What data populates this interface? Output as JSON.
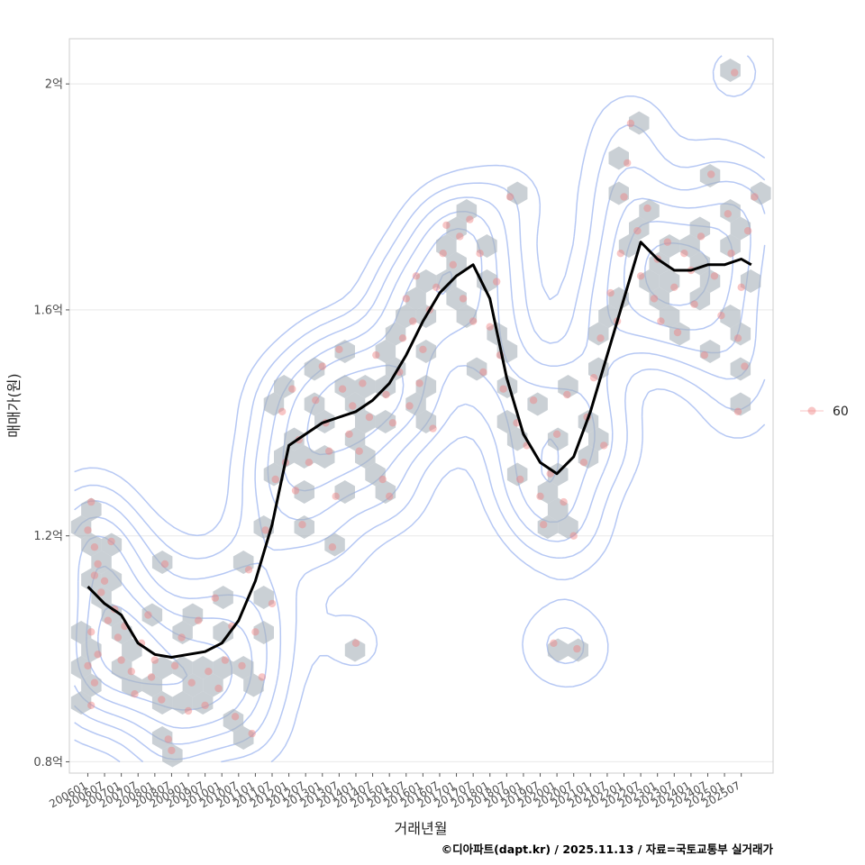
{
  "chart_data": {
    "type": "scatter",
    "title": "",
    "xlabel": "거래년월",
    "ylabel": "매매가(원)",
    "caption": "©디아파트(dapt.kr) / 2025.11.13 / 자료=국토교통부 실거래가",
    "legend": {
      "position": "right",
      "entries": [
        "60"
      ]
    },
    "x_range": [
      2005.45,
      2026.45
    ],
    "ylim": [
      0.78,
      2.08
    ],
    "y_unit": "억",
    "y_ticks": [
      {
        "value": 0.8,
        "label": "0.8억"
      },
      {
        "value": 1.2,
        "label": "1.2억"
      },
      {
        "value": 1.6,
        "label": "1.6억"
      },
      {
        "value": 2.0,
        "label": "2억"
      }
    ],
    "x_ticks": [
      "200601",
      "200607",
      "200701",
      "200707",
      "200801",
      "200807",
      "200901",
      "200907",
      "201001",
      "201007",
      "201101",
      "201107",
      "201201",
      "201207",
      "201301",
      "201307",
      "201401",
      "201407",
      "201501",
      "201507",
      "201601",
      "201607",
      "201701",
      "201707",
      "201801",
      "201807",
      "201901",
      "201907",
      "202001",
      "202007",
      "202101",
      "202107",
      "202201",
      "202207",
      "202301",
      "202307",
      "202401",
      "202407",
      "202501",
      "202507"
    ],
    "colors": {
      "points": "#f08080",
      "hexbin": "#aab3bb",
      "density": "#a9bef2",
      "trend": "#000000",
      "grid": "#ebebeb",
      "panel_border": "#cccccc"
    },
    "series": [
      {
        "name": "moving-average",
        "x": [
          2006.0,
          2006.5,
          2007.0,
          2007.5,
          2008.0,
          2008.5,
          2009.0,
          2009.5,
          2010.0,
          2010.5,
          2011.0,
          2011.5,
          2012.0,
          2012.5,
          2013.0,
          2013.5,
          2014.0,
          2014.5,
          2015.0,
          2015.5,
          2016.0,
          2016.5,
          2017.0,
          2017.5,
          2018.0,
          2018.5,
          2019.0,
          2019.5,
          2020.0,
          2020.5,
          2021.0,
          2021.5,
          2022.0,
          2022.5,
          2023.0,
          2023.5,
          2024.0,
          2024.5,
          2025.0,
          2025.5,
          2025.8
        ],
        "y": [
          1.11,
          1.08,
          1.06,
          1.01,
          0.99,
          0.985,
          0.99,
          0.995,
          1.01,
          1.05,
          1.12,
          1.22,
          1.36,
          1.38,
          1.4,
          1.41,
          1.42,
          1.44,
          1.47,
          1.52,
          1.58,
          1.63,
          1.66,
          1.68,
          1.62,
          1.48,
          1.38,
          1.33,
          1.31,
          1.34,
          1.42,
          1.52,
          1.62,
          1.72,
          1.69,
          1.67,
          1.67,
          1.68,
          1.68,
          1.69,
          1.68
        ]
      },
      {
        "name": "60",
        "points": [
          [
            2006.0,
            1.21
          ],
          [
            2006.1,
            1.26
          ],
          [
            2006.2,
            1.18
          ],
          [
            2006.2,
            1.13
          ],
          [
            2006.3,
            1.15
          ],
          [
            2006.4,
            1.1
          ],
          [
            2006.5,
            1.12
          ],
          [
            2006.6,
            1.05
          ],
          [
            2006.1,
            1.03
          ],
          [
            2006.3,
            0.99
          ],
          [
            2006.0,
            0.97
          ],
          [
            2006.2,
            0.94
          ],
          [
            2006.1,
            0.9
          ],
          [
            2006.7,
            1.19
          ],
          [
            2006.8,
            1.07
          ],
          [
            2006.9,
            1.02
          ],
          [
            2007.0,
            0.98
          ],
          [
            2007.1,
            1.04
          ],
          [
            2007.3,
            0.96
          ],
          [
            2007.4,
            0.92
          ],
          [
            2007.6,
            1.01
          ],
          [
            2007.8,
            1.06
          ],
          [
            2007.9,
            0.95
          ],
          [
            2008.0,
            0.98
          ],
          [
            2008.2,
            0.91
          ],
          [
            2008.3,
            1.15
          ],
          [
            2008.4,
            0.84
          ],
          [
            2008.5,
            0.82
          ],
          [
            2008.6,
            0.97
          ],
          [
            2008.8,
            1.02
          ],
          [
            2009.0,
            0.89
          ],
          [
            2009.1,
            0.94
          ],
          [
            2009.3,
            1.05
          ],
          [
            2009.5,
            0.9
          ],
          [
            2009.6,
            0.96
          ],
          [
            2009.8,
            1.09
          ],
          [
            2009.9,
            0.93
          ],
          [
            2010.1,
            0.98
          ],
          [
            2010.3,
            1.04
          ],
          [
            2010.4,
            0.88
          ],
          [
            2010.6,
            0.97
          ],
          [
            2010.8,
            1.14
          ],
          [
            2010.9,
            0.85
          ],
          [
            2011.0,
            1.03
          ],
          [
            2011.2,
            0.95
          ],
          [
            2011.3,
            1.21
          ],
          [
            2011.5,
            1.08
          ],
          [
            2011.6,
            1.3
          ],
          [
            2011.8,
            1.42
          ],
          [
            2011.9,
            1.33
          ],
          [
            2012.1,
            1.46
          ],
          [
            2012.2,
            1.28
          ],
          [
            2012.3,
            1.37
          ],
          [
            2012.4,
            1.22
          ],
          [
            2012.6,
            1.33
          ],
          [
            2012.8,
            1.44
          ],
          [
            2013.0,
            1.5
          ],
          [
            2013.1,
            1.4
          ],
          [
            2013.2,
            1.35
          ],
          [
            2013.3,
            1.18
          ],
          [
            2013.4,
            1.27
          ],
          [
            2013.5,
            1.53
          ],
          [
            2013.6,
            1.46
          ],
          [
            2013.8,
            1.38
          ],
          [
            2013.9,
            1.43
          ],
          [
            2014.0,
            1.01
          ],
          [
            2014.1,
            1.35
          ],
          [
            2014.2,
            1.47
          ],
          [
            2014.4,
            1.41
          ],
          [
            2014.6,
            1.52
          ],
          [
            2014.8,
            1.3
          ],
          [
            2014.9,
            1.45
          ],
          [
            2015.0,
            1.27
          ],
          [
            2015.1,
            1.4
          ],
          [
            2015.3,
            1.49
          ],
          [
            2015.4,
            1.55
          ],
          [
            2015.5,
            1.62
          ],
          [
            2015.6,
            1.43
          ],
          [
            2015.7,
            1.58
          ],
          [
            2015.8,
            1.66
          ],
          [
            2015.9,
            1.47
          ],
          [
            2016.0,
            1.53
          ],
          [
            2016.2,
            1.6
          ],
          [
            2016.3,
            1.39
          ],
          [
            2016.4,
            1.64
          ],
          [
            2016.6,
            1.7
          ],
          [
            2016.7,
            1.75
          ],
          [
            2016.9,
            1.68
          ],
          [
            2017.1,
            1.73
          ],
          [
            2017.2,
            1.62
          ],
          [
            2017.4,
            1.76
          ],
          [
            2017.5,
            1.58
          ],
          [
            2017.7,
            1.7
          ],
          [
            2017.8,
            1.49
          ],
          [
            2018.0,
            1.57
          ],
          [
            2018.2,
            1.65
          ],
          [
            2018.3,
            1.52
          ],
          [
            2018.4,
            1.46
          ],
          [
            2018.6,
            1.8
          ],
          [
            2018.8,
            1.4
          ],
          [
            2018.9,
            1.3
          ],
          [
            2019.1,
            1.36
          ],
          [
            2019.3,
            1.44
          ],
          [
            2019.5,
            1.27
          ],
          [
            2019.6,
            1.22
          ],
          [
            2019.8,
            1.31
          ],
          [
            2019.9,
            1.01
          ],
          [
            2020.0,
            1.38
          ],
          [
            2020.2,
            1.26
          ],
          [
            2020.3,
            1.45
          ],
          [
            2020.5,
            1.2
          ],
          [
            2020.6,
            1.0
          ],
          [
            2020.8,
            1.33
          ],
          [
            2020.9,
            1.41
          ],
          [
            2021.1,
            1.48
          ],
          [
            2021.3,
            1.55
          ],
          [
            2021.4,
            1.36
          ],
          [
            2021.6,
            1.63
          ],
          [
            2021.8,
            1.58
          ],
          [
            2021.9,
            1.7
          ],
          [
            2022.0,
            1.8
          ],
          [
            2022.1,
            1.86
          ],
          [
            2022.2,
            1.93
          ],
          [
            2022.4,
            1.74
          ],
          [
            2022.5,
            1.66
          ],
          [
            2022.7,
            1.78
          ],
          [
            2022.9,
            1.62
          ],
          [
            2023.0,
            1.69
          ],
          [
            2023.1,
            1.58
          ],
          [
            2023.3,
            1.72
          ],
          [
            2023.5,
            1.64
          ],
          [
            2023.6,
            1.56
          ],
          [
            2023.8,
            1.7
          ],
          [
            2024.0,
            1.67
          ],
          [
            2024.1,
            1.61
          ],
          [
            2024.3,
            1.73
          ],
          [
            2024.4,
            1.52
          ],
          [
            2024.6,
            1.84
          ],
          [
            2024.7,
            1.66
          ],
          [
            2024.9,
            1.59
          ],
          [
            2025.1,
            1.77
          ],
          [
            2025.2,
            1.7
          ],
          [
            2025.4,
            1.55
          ],
          [
            2025.5,
            1.64
          ],
          [
            2025.6,
            1.5
          ],
          [
            2025.7,
            1.74
          ],
          [
            2025.3,
            2.02
          ],
          [
            2025.4,
            1.42
          ],
          [
            2025.9,
            1.8
          ]
        ]
      }
    ]
  }
}
